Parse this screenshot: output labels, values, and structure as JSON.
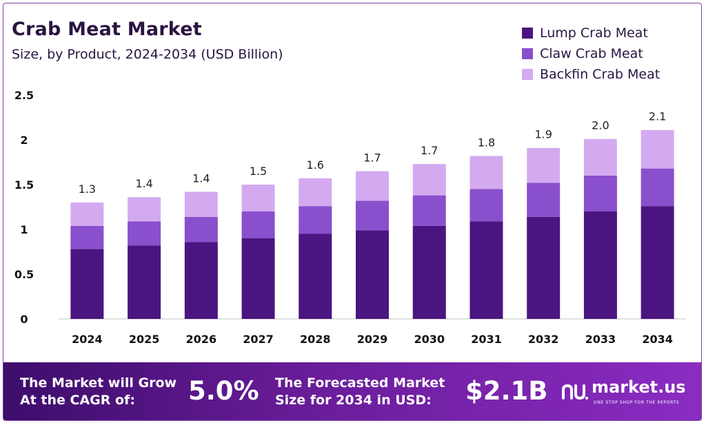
{
  "title": "Crab Meat Market",
  "subtitle": "Size, by Product, 2024-2034 (USD Billion)",
  "legend": [
    {
      "label": "Lump Crab Meat",
      "color": "#4a1580"
    },
    {
      "label": "Claw Crab Meat",
      "color": "#8a4fcc"
    },
    {
      "label": "Backfin Crab Meat",
      "color": "#d3aaf0"
    }
  ],
  "chart_data": {
    "type": "bar",
    "stacked": true,
    "categories": [
      "2024",
      "2025",
      "2026",
      "2027",
      "2028",
      "2029",
      "2030",
      "2031",
      "2032",
      "2033",
      "2034"
    ],
    "series": [
      {
        "name": "Lump Crab Meat",
        "color": "#4a1580",
        "values": [
          0.78,
          0.82,
          0.86,
          0.9,
          0.95,
          0.99,
          1.04,
          1.09,
          1.14,
          1.2,
          1.26
        ]
      },
      {
        "name": "Claw Crab Meat",
        "color": "#8a4fcc",
        "values": [
          0.26,
          0.27,
          0.28,
          0.3,
          0.31,
          0.33,
          0.34,
          0.36,
          0.38,
          0.4,
          0.42
        ]
      },
      {
        "name": "Backfin Crab Meat",
        "color": "#d3aaf0",
        "values": [
          0.26,
          0.27,
          0.28,
          0.3,
          0.31,
          0.33,
          0.35,
          0.37,
          0.39,
          0.41,
          0.43
        ]
      }
    ],
    "totals": [
      "1.3",
      "1.4",
      "1.4",
      "1.5",
      "1.6",
      "1.7",
      "1.7",
      "1.8",
      "1.9",
      "2.0",
      "2.1"
    ],
    "yticks": [
      "0",
      "0.5",
      "1",
      "1.5",
      "2",
      "2.5"
    ],
    "ylim": [
      0,
      2.5
    ],
    "grid": false,
    "legend_position": "top-right"
  },
  "footer": {
    "cagr_text_1": "The Market will Grow",
    "cagr_text_2": "At the CAGR of:",
    "cagr_value": "5.0%",
    "forecast_text_1": "The Forecasted Market",
    "forecast_text_2": "Size for 2034 in USD:",
    "forecast_value": "$2.1B",
    "logo_name": "market.us",
    "logo_tagline": "ONE STOP SHOP FOR THE REPORTS"
  }
}
